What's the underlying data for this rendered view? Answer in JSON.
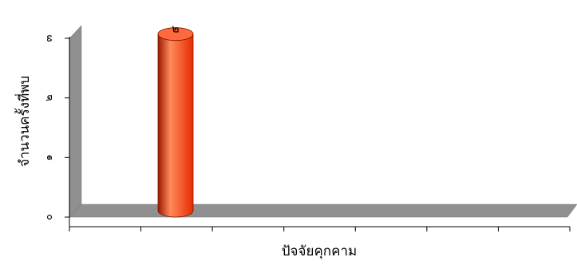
{
  "chart_data": {
    "type": "bar",
    "style": "3d-cylinder",
    "title": "",
    "xlabel": "ปัจจัยคุกคาม",
    "ylabel": "จำนวนครั้งที่พบ",
    "ylim": [
      0,
      3
    ],
    "yticks": [
      0,
      1,
      2,
      3
    ],
    "ytick_labels": [
      "๐",
      "๑",
      "๒",
      "๓"
    ],
    "x_divisions": 7,
    "categories": [
      ""
    ],
    "series": [
      {
        "values": [
          2
        ],
        "value_labels": [
          "๒"
        ]
      }
    ],
    "colors": {
      "bar": "#e82a00",
      "bar_highlight": "#ff8a5c",
      "bar_shadow": "#9a1a00",
      "bar_top": "#ff6a3d",
      "wall": "#909090",
      "wall_side": "#b8b8b8",
      "wall_edge": "#707070"
    },
    "grid": false
  }
}
